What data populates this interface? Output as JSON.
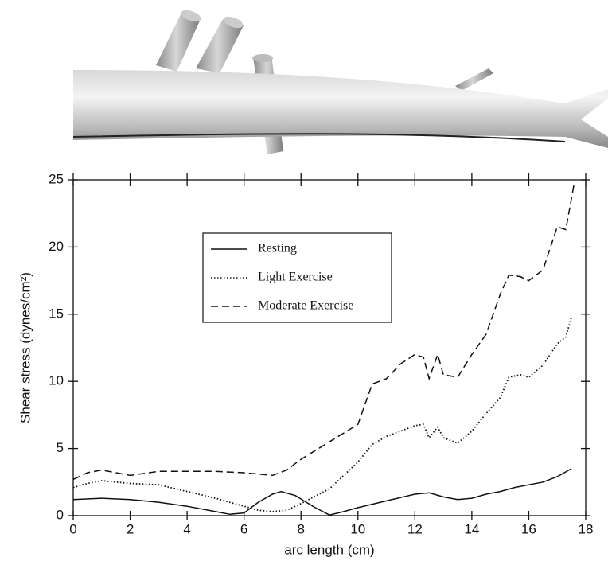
{
  "chart_data": {
    "type": "line",
    "xlabel": "arc length (cm)",
    "ylabel": "Shear stress (dynes/cm²)",
    "xlim": [
      0,
      18
    ],
    "ylim": [
      0,
      25
    ],
    "xticks": [
      0,
      2,
      4,
      6,
      8,
      10,
      12,
      14,
      16,
      18
    ],
    "yticks": [
      0,
      5,
      10,
      15,
      20,
      25
    ],
    "legend": "center",
    "series": [
      {
        "name": "Resting",
        "color": "#111111",
        "dash": "solid",
        "x": [
          0,
          1,
          2,
          3,
          4,
          5,
          5.5,
          6,
          6.5,
          7,
          7.3,
          7.8,
          8.5,
          9,
          9.5,
          10,
          11,
          12,
          12.5,
          13,
          13.5,
          14,
          14.5,
          15,
          15.5,
          16,
          16.5,
          17,
          17.5
        ],
        "values": [
          1.2,
          1.3,
          1.2,
          1.0,
          0.7,
          0.3,
          0.1,
          0.2,
          1.0,
          1.6,
          1.8,
          1.5,
          0.6,
          0.05,
          0.3,
          0.6,
          1.1,
          1.6,
          1.7,
          1.4,
          1.2,
          1.3,
          1.6,
          1.8,
          2.1,
          2.3,
          2.5,
          2.9,
          3.5
        ]
      },
      {
        "name": "Light Exercise",
        "color": "#111111",
        "dash": "dotted",
        "x": [
          0,
          0.5,
          1,
          1.5,
          2,
          3,
          4,
          5,
          6,
          6.5,
          7,
          7.5,
          8,
          9,
          9.5,
          10,
          10.5,
          11,
          11.5,
          12,
          12.3,
          12.5,
          12.8,
          13,
          13.5,
          14,
          14.5,
          15,
          15.3,
          15.7,
          16,
          16.5,
          17,
          17.3,
          17.5
        ],
        "values": [
          2.1,
          2.4,
          2.6,
          2.5,
          2.4,
          2.3,
          1.8,
          1.3,
          0.7,
          0.4,
          0.3,
          0.4,
          0.9,
          2.0,
          3.0,
          4.0,
          5.3,
          5.9,
          6.3,
          6.7,
          6.8,
          5.8,
          6.6,
          5.8,
          5.4,
          6.3,
          7.6,
          8.8,
          10.3,
          10.5,
          10.3,
          11.2,
          12.8,
          13.3,
          14.8
        ]
      },
      {
        "name": "Moderate Exercise",
        "color": "#111111",
        "dash": "dashed",
        "x": [
          0,
          0.5,
          1,
          2,
          3,
          4,
          5,
          6,
          7,
          7.5,
          8,
          9,
          10,
          10.5,
          11,
          11.5,
          12,
          12.3,
          12.5,
          12.8,
          13,
          13.5,
          14,
          14.5,
          15,
          15.3,
          15.7,
          16,
          16.5,
          17,
          17.3,
          17.6
        ],
        "values": [
          2.7,
          3.2,
          3.4,
          3.0,
          3.3,
          3.3,
          3.3,
          3.2,
          3.0,
          3.4,
          4.2,
          5.5,
          6.8,
          9.8,
          10.2,
          11.3,
          12.0,
          11.8,
          10.2,
          12.0,
          10.5,
          10.3,
          12.0,
          13.5,
          16.5,
          17.9,
          17.8,
          17.5,
          18.3,
          21.5,
          21.3,
          24.8
        ]
      }
    ]
  }
}
